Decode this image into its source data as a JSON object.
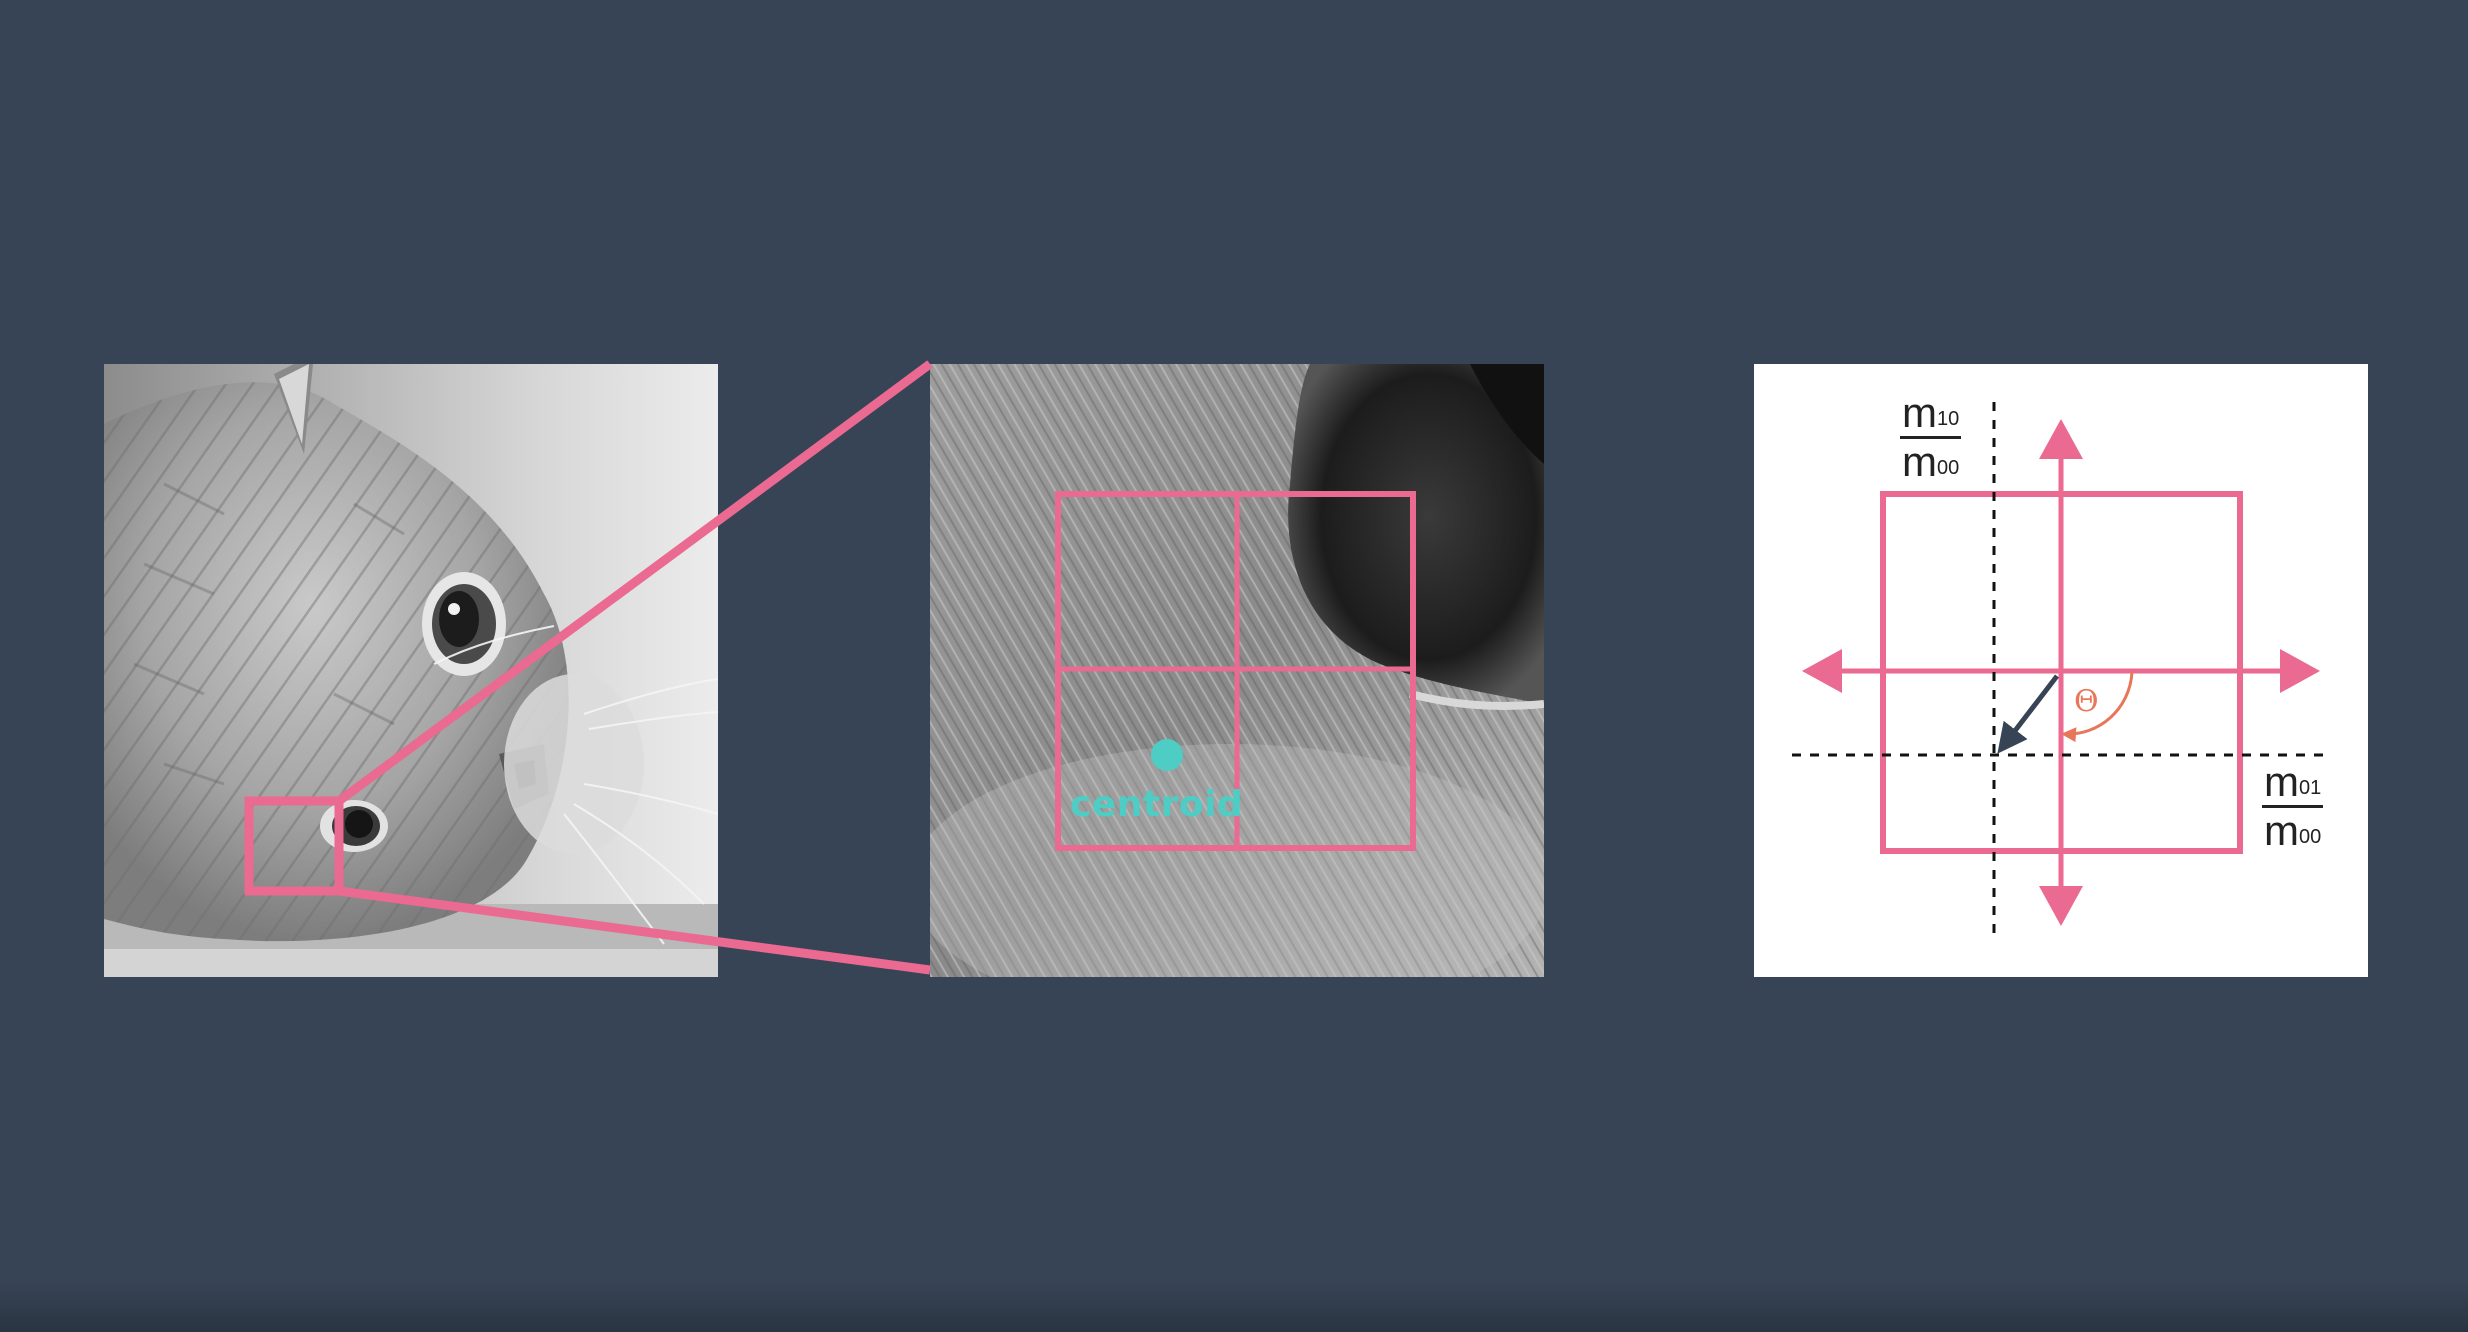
{
  "figure": {
    "background_color": "#374455",
    "accent_color": "#ea6a92",
    "centroid_color": "#4ecdc4",
    "angle_color": "#e8775a"
  },
  "panels": {
    "cat_photo": {
      "description_icon": "cat-photo-grayscale"
    },
    "zoom_patch": {
      "centroid_label": "centroid"
    },
    "orientation_diagram": {
      "y_axis_label": {
        "numerator": "m",
        "numerator_sub": "10",
        "denominator": "m",
        "denominator_sub": "00"
      },
      "x_axis_label": {
        "numerator": "m",
        "numerator_sub": "01",
        "denominator": "m",
        "denominator_sub": "00"
      },
      "angle_label": "Θ"
    }
  }
}
